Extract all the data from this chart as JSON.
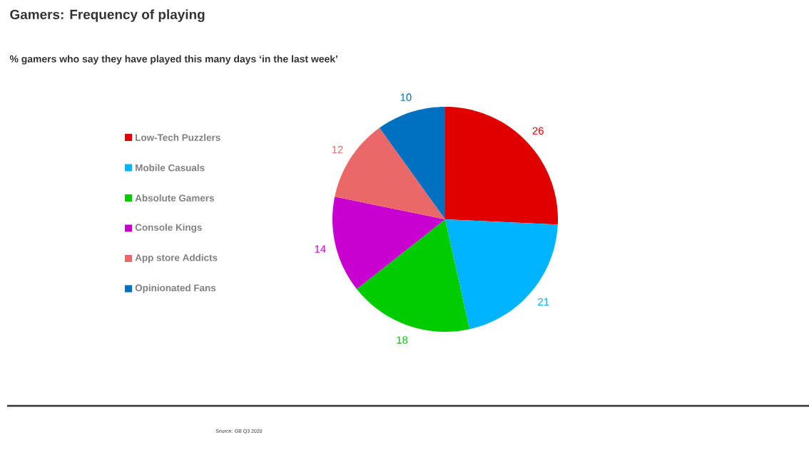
{
  "chart_data": {
    "type": "pie",
    "title": "Gamers: Frequency of playing",
    "subtitle": "% gamers who say they have played this many days ‘in the last week’",
    "categories": [
      "Low-Tech Puzzlers",
      "Mobile Casuals",
      "Absolute Gamers",
      "Console Kings",
      "App store Addicts",
      "Opinionated Fans"
    ],
    "values": [
      26,
      21,
      18,
      14,
      12,
      10
    ],
    "colors": [
      "#e00000",
      "#00b4ff",
      "#00cc00",
      "#c800d0",
      "#eb6868",
      "#0070c0"
    ],
    "data_labels": true,
    "legend": "left",
    "annotations": [
      "Source: GB Q3 2020"
    ]
  }
}
